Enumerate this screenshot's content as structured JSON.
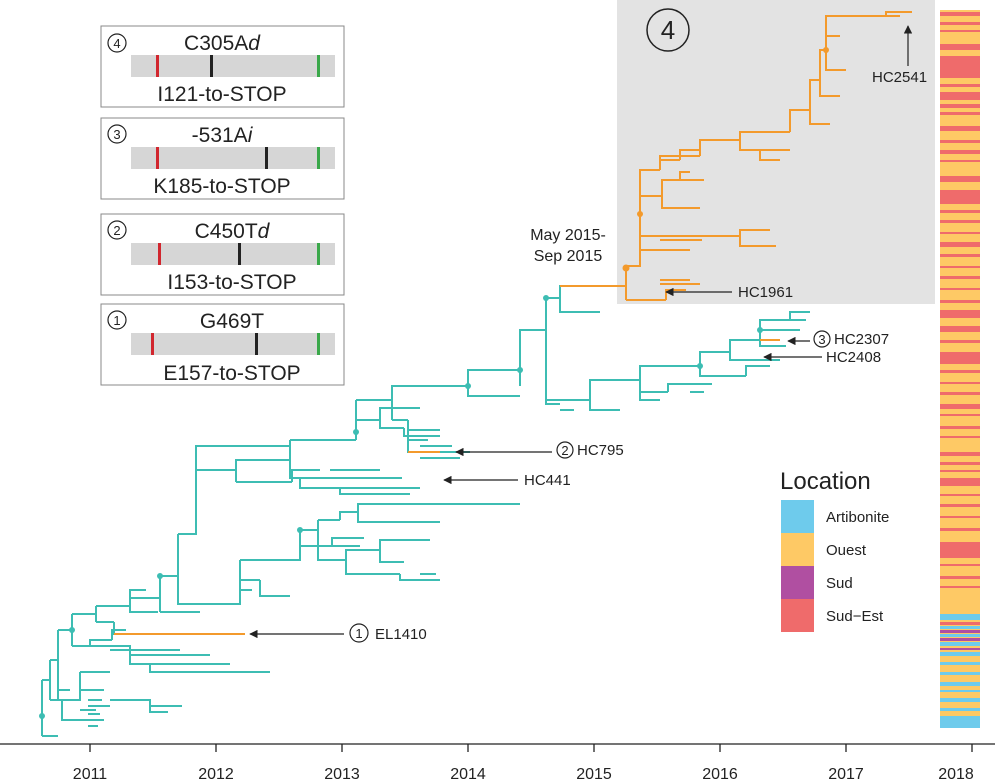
{
  "colors": {
    "teal": "#3dbdb3",
    "orange": "#f39a2c",
    "artibonite": "#6ecbec",
    "ouest": "#fec965",
    "sud": "#b04fa1",
    "sudest": "#ef6b6b",
    "panel": "#e3e3e3",
    "bar": "#d6d6d6",
    "red_mark": "#d1262e",
    "green_mark": "#3aa84a",
    "black_mark": "#222222"
  },
  "axis": {
    "ticks": [
      "2011",
      "2012",
      "2013",
      "2014",
      "2015",
      "2016",
      "2017",
      "2018"
    ]
  },
  "insets": [
    {
      "num": "④",
      "mutation_pre": "C305A",
      "mutation_italic": "d",
      "stop": "I121-to-STOP",
      "mark": 0.39
    },
    {
      "num": "③",
      "mutation_pre": "-531A",
      "mutation_italic": "i",
      "stop": "K185-to-STOP",
      "mark": 0.66
    },
    {
      "num": "②",
      "mutation_pre": "C450T",
      "mutation_italic": "d",
      "stop": "I153-to-STOP",
      "mark": 0.53
    },
    {
      "num": "①",
      "mutation_pre": "G469T",
      "mutation_italic": "",
      "stop": "E157-to-STOP",
      "mark": 0.6
    }
  ],
  "clade_panel": {
    "num": "4"
  },
  "annotations": {
    "date_range_1": "May 2015-",
    "date_range_2": "Sep 2015",
    "hc2541": "HC2541",
    "hc1961": "HC1961",
    "hc2307_num": "3",
    "hc2307": "HC2307",
    "hc2408": "HC2408",
    "hc795_num": "2",
    "hc795": "HC795",
    "hc441": "HC441",
    "el1410_num": "1",
    "el1410": "EL1410"
  },
  "legend": {
    "title": "Location",
    "items": [
      {
        "label": "Artibonite",
        "color": "#6ecbec"
      },
      {
        "label": "Ouest",
        "color": "#fec965"
      },
      {
        "label": "Sud",
        "color": "#b04fa1"
      },
      {
        "label": "Sud−Est",
        "color": "#ef6b6b"
      }
    ]
  }
}
